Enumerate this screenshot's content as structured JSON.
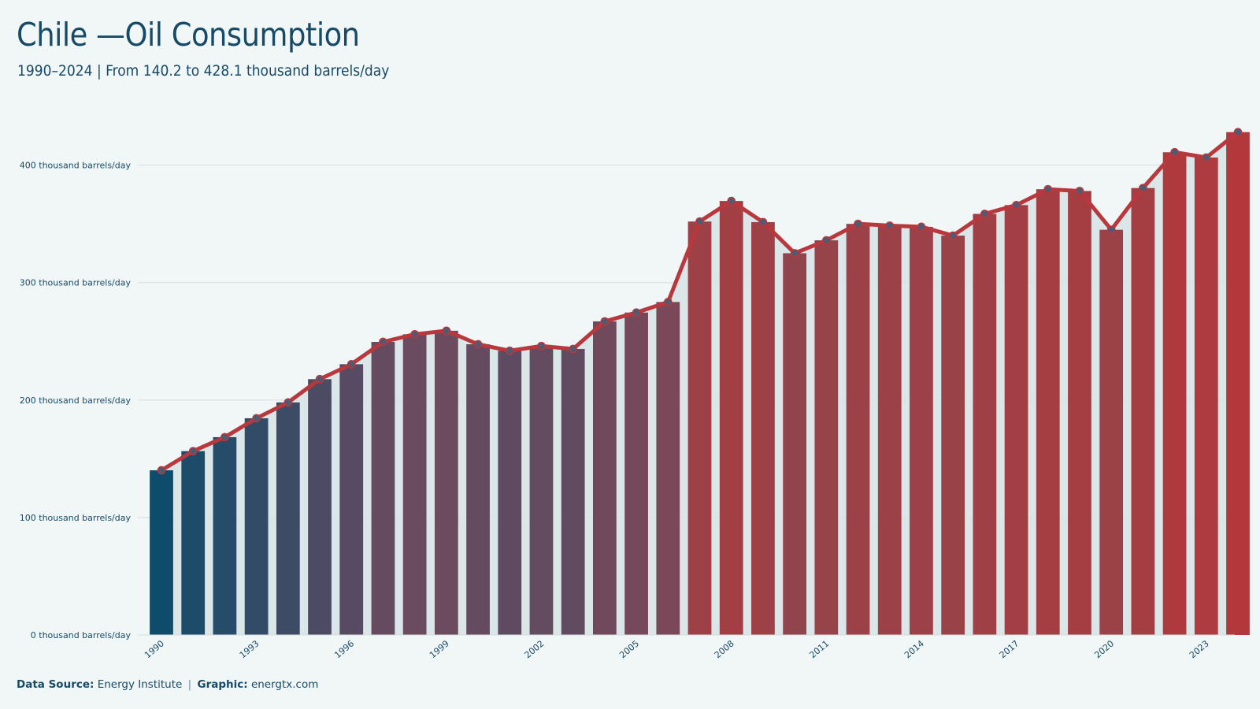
{
  "header": {
    "title": "Chile —Oil Consumption",
    "subtitle": "1990–2024 | From 140.2 to 428.1 thousand barrels/day"
  },
  "footer": {
    "source_label": "Data Source:",
    "source_value": "Energy Institute",
    "separator": "|",
    "graphic_label": "Graphic:",
    "graphic_value": "energtx.com"
  },
  "colors": {
    "start": "#0f4c6c",
    "mid": "#6a4b5f",
    "high": "#9a4248",
    "end": "#b3383c",
    "line": "#b8383d",
    "marker": "#4f5a73",
    "grid": "#d6dcdf",
    "bar_shadow": "#d6e3e5"
  },
  "chart_data": {
    "type": "bar",
    "x": [
      1990,
      1991,
      1992,
      1993,
      1994,
      1995,
      1996,
      1997,
      1998,
      1999,
      2000,
      2001,
      2002,
      2003,
      2004,
      2005,
      2006,
      2007,
      2008,
      2009,
      2010,
      2011,
      2012,
      2013,
      2014,
      2015,
      2016,
      2017,
      2018,
      2019,
      2020,
      2021,
      2022,
      2023,
      2024
    ],
    "values": [
      140.2,
      156.5,
      168.4,
      184.5,
      198.0,
      217.8,
      230.5,
      249.5,
      256.0,
      259.0,
      247.5,
      242.0,
      246.0,
      243.5,
      267.0,
      274.5,
      283.5,
      352.0,
      369.5,
      351.5,
      325.0,
      336.0,
      350.0,
      348.5,
      347.5,
      340.0,
      358.5,
      366.0,
      379.5,
      378.0,
      345.0,
      380.5,
      411.0,
      406.5,
      428.1
    ],
    "ylim": [
      0,
      440
    ],
    "yticks": [
      {
        "value": 0,
        "label": "0 thousand barrels/day"
      },
      {
        "value": 100,
        "label": "100 thousand barrels/day"
      },
      {
        "value": 200,
        "label": "200 thousand barrels/day"
      },
      {
        "value": 300,
        "label": "300 thousand barrels/day"
      },
      {
        "value": 400,
        "label": "400 thousand barrels/day"
      }
    ],
    "xtick_labels": [
      "1990",
      "1993",
      "1996",
      "1999",
      "2002",
      "2005",
      "2008",
      "2011",
      "2014",
      "2017",
      "2020",
      "2023"
    ],
    "overlay": "line-with-markers",
    "grid": true,
    "legend": "none"
  }
}
